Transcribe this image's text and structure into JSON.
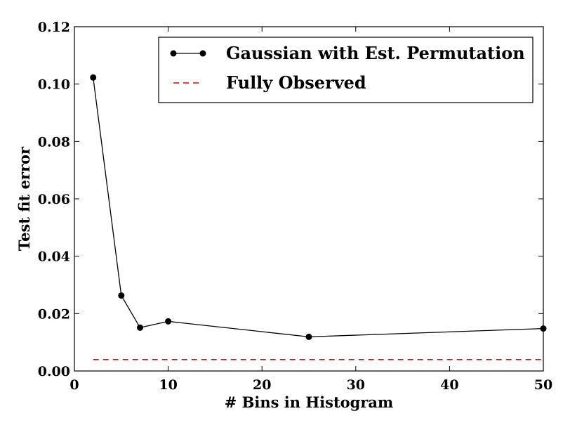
{
  "chart_data": {
    "type": "line",
    "title": "",
    "xlabel": "# Bins in Histogram",
    "ylabel": "Test fit error",
    "xlim": [
      0,
      50
    ],
    "ylim": [
      0,
      0.12
    ],
    "xticks": [
      0,
      10,
      20,
      30,
      40,
      50
    ],
    "xtick_labels": [
      "0",
      "10",
      "20",
      "30",
      "40",
      "50"
    ],
    "yticks": [
      0,
      0.02,
      0.04,
      0.06,
      0.08,
      0.1,
      0.12
    ],
    "ytick_labels": [
      "0.00",
      "0.02",
      "0.04",
      "0.06",
      "0.08",
      "0.10",
      "0.12"
    ],
    "grid": false,
    "legend_position": "top-right",
    "series": [
      {
        "name": "Gaussian with Est. Permutation",
        "style": "solid-with-markers",
        "color": "#000000",
        "x": [
          2,
          5,
          7,
          10,
          25,
          50
        ],
        "y": [
          0.1023,
          0.0263,
          0.0151,
          0.0173,
          0.0119,
          0.0148
        ]
      },
      {
        "name": "Fully Observed",
        "style": "dashed",
        "color": "#ff0000",
        "x": [
          2,
          50
        ],
        "y": [
          0.004,
          0.004
        ]
      }
    ]
  }
}
